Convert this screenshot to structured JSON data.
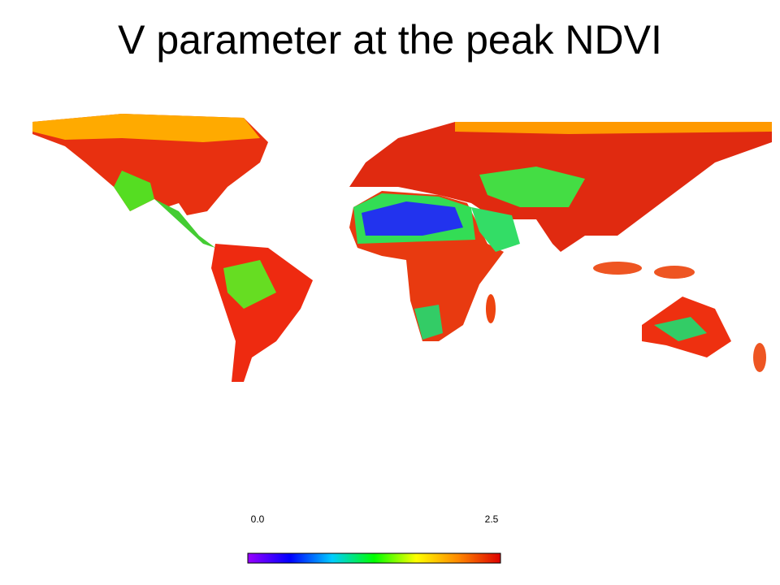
{
  "title": "V parameter at the peak NDVI",
  "colorbar": {
    "lim": [
      0,
      2.5
    ],
    "ticks": [
      {
        "value": 0,
        "label": "0.0"
      },
      {
        "value": 2.5,
        "label": "2.5"
      }
    ],
    "colors": [
      "#9900ff",
      "#0000ff",
      "#00ccff",
      "#00ff00",
      "#ffff00",
      "#ff8800",
      "#dd0000"
    ]
  }
}
